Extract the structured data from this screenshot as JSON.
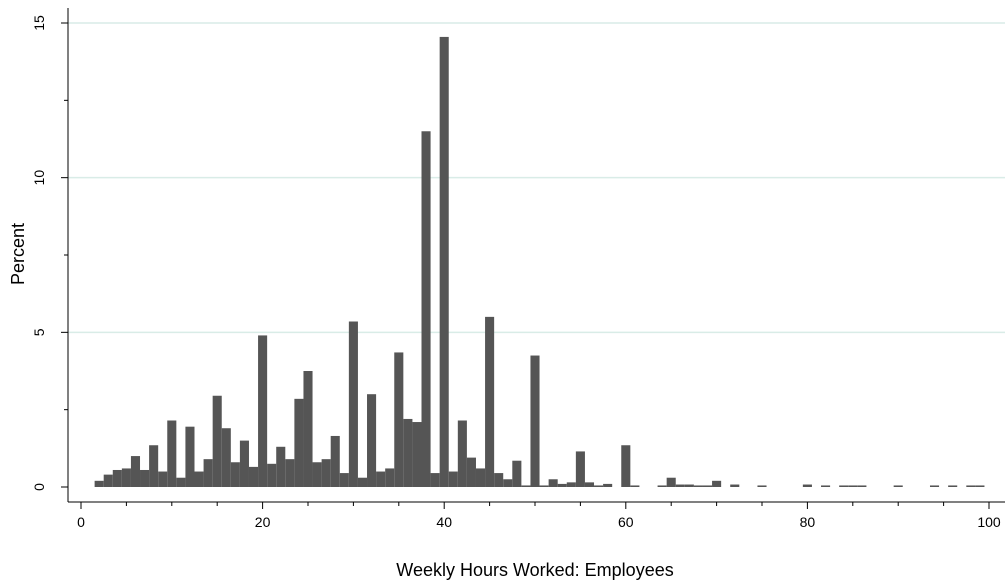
{
  "chart_data": {
    "type": "bar",
    "xlabel": "Weekly Hours Worked:  Employees",
    "ylabel": "Percent",
    "xlim": [
      0,
      100
    ],
    "ylim": [
      0,
      15
    ],
    "xticks": [
      0,
      20,
      40,
      60,
      80,
      100
    ],
    "xtick_labels": [
      "0",
      "20",
      "40",
      "60",
      "80",
      "100"
    ],
    "yticks": [
      0,
      5,
      10,
      15
    ],
    "ytick_labels": [
      "0",
      "5",
      "10",
      "15"
    ],
    "grid": "horizontal",
    "bar_color": "#555555",
    "grid_color": "#d9ece7",
    "x": [
      2,
      3,
      4,
      5,
      6,
      7,
      8,
      9,
      10,
      11,
      12,
      13,
      14,
      15,
      16,
      17,
      18,
      19,
      20,
      21,
      22,
      23,
      24,
      25,
      26,
      27,
      28,
      29,
      30,
      31,
      32,
      33,
      34,
      35,
      36,
      37,
      38,
      39,
      40,
      41,
      42,
      43,
      44,
      45,
      46,
      47,
      48,
      49,
      50,
      51,
      52,
      53,
      54,
      55,
      56,
      57,
      58,
      60,
      61,
      64,
      65,
      66,
      67,
      68,
      69,
      70,
      72,
      75,
      80,
      82,
      84,
      85,
      86,
      90,
      94,
      96,
      98,
      99
    ],
    "values": [
      0.2,
      0.4,
      0.55,
      0.6,
      1.0,
      0.55,
      1.35,
      0.5,
      2.15,
      0.3,
      1.95,
      0.5,
      0.9,
      2.95,
      1.9,
      0.8,
      1.5,
      0.65,
      4.9,
      0.75,
      1.3,
      0.9,
      2.85,
      3.75,
      0.8,
      0.9,
      1.65,
      0.45,
      5.35,
      0.3,
      3.0,
      0.5,
      0.6,
      4.35,
      2.2,
      2.1,
      11.5,
      0.45,
      14.55,
      0.5,
      2.15,
      0.95,
      0.6,
      5.5,
      0.45,
      0.25,
      0.85,
      0.05,
      4.25,
      0.05,
      0.25,
      0.1,
      0.15,
      1.15,
      0.15,
      0.05,
      0.1,
      1.35,
      0.05,
      0.05,
      0.3,
      0.08,
      0.08,
      0.05,
      0.05,
      0.2,
      0.08,
      0.05,
      0.08,
      0.05,
      0.05,
      0.05,
      0.05,
      0.05,
      0.05,
      0.05,
      0.05,
      0.05
    ]
  }
}
